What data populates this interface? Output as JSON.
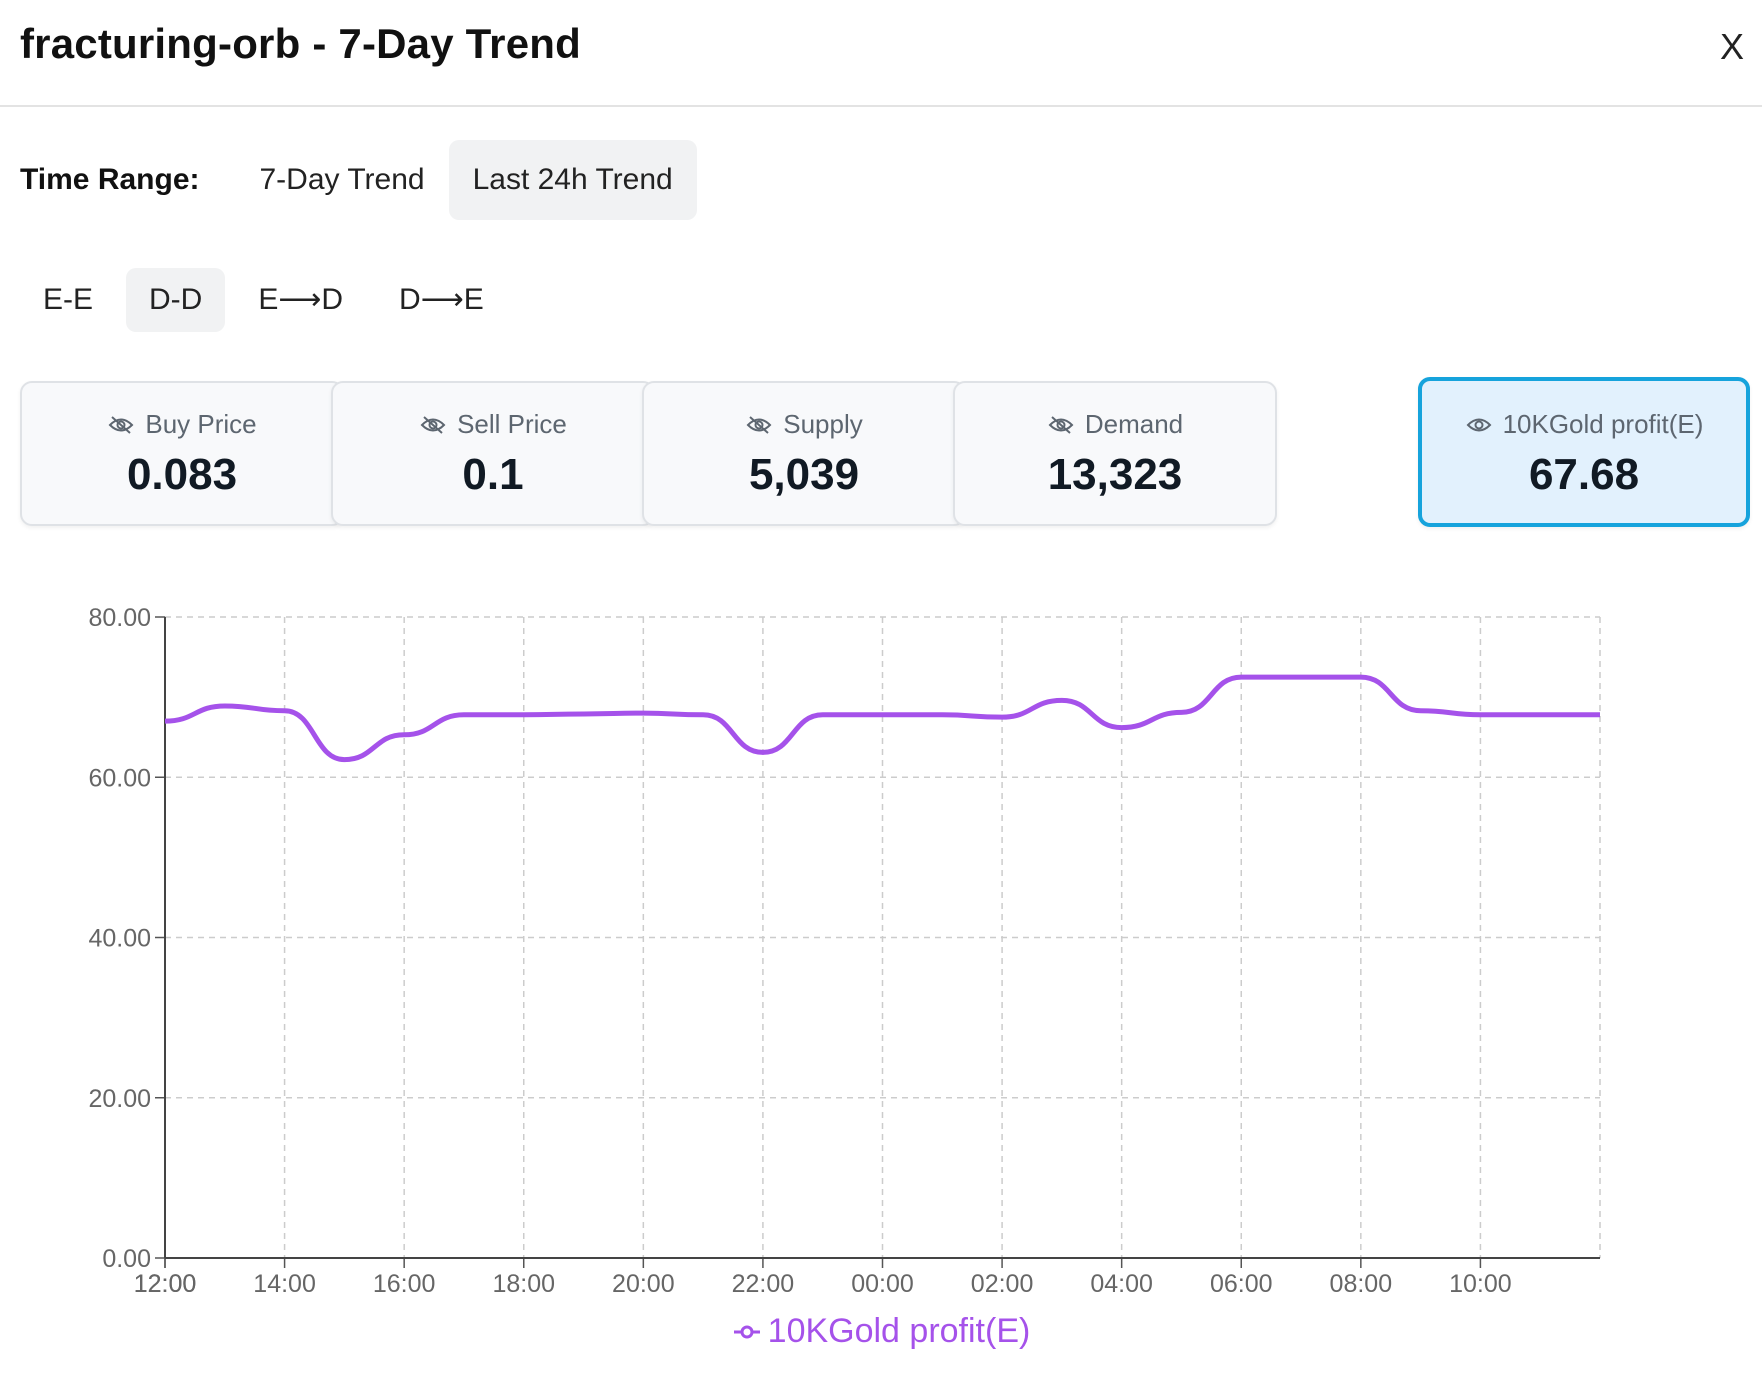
{
  "header": {
    "title": "fracturing-orb - 7-Day Trend",
    "close_label": "X"
  },
  "time_range": {
    "label": "Time Range:",
    "options": [
      "7-Day Trend",
      "Last 24h Trend"
    ],
    "selected": "Last 24h Trend"
  },
  "modes": {
    "options": [
      "E-E",
      "D-D",
      "E⟶D",
      "D⟶E"
    ],
    "selected": "D-D"
  },
  "cards": [
    {
      "label": "Buy Price",
      "value": "0.083",
      "icon": "eye-off-icon",
      "visible": false
    },
    {
      "label": "Sell Price",
      "value": "0.1",
      "icon": "eye-off-icon",
      "visible": false
    },
    {
      "label": "Supply",
      "value": "5,039",
      "icon": "eye-off-icon",
      "visible": false
    },
    {
      "label": "Demand",
      "value": "13,323",
      "icon": "eye-off-icon",
      "visible": false
    },
    {
      "label": "10KGold profit(E)",
      "value": "67.68",
      "icon": "eye-icon",
      "visible": true
    }
  ],
  "colors": {
    "series": "#a552ea",
    "accent": "#16a3dc",
    "grid": "#cccccc"
  },
  "chart_data": {
    "type": "line",
    "title": "",
    "xlabel": "",
    "ylabel": "",
    "ylim": [
      0,
      80
    ],
    "yticks": [
      "0.00",
      "20.00",
      "40.00",
      "60.00",
      "80.00"
    ],
    "x": [
      "12:00",
      "13:00",
      "14:00",
      "15:00",
      "16:00",
      "17:00",
      "18:00",
      "19:00",
      "20:00",
      "21:00",
      "22:00",
      "23:00",
      "00:00",
      "01:00",
      "02:00",
      "03:00",
      "04:00",
      "05:00",
      "06:00",
      "07:00",
      "08:00",
      "09:00",
      "10:00",
      "11:00",
      "12:00"
    ],
    "xticks": [
      "12:00",
      "14:00",
      "16:00",
      "18:00",
      "20:00",
      "22:00",
      "00:00",
      "02:00",
      "04:00",
      "06:00",
      "08:00",
      "10:00",
      "12:00"
    ],
    "series": [
      {
        "name": "10KGold profit(E)",
        "values": [
          67.0,
          68.9,
          68.3,
          62.2,
          65.3,
          67.8,
          67.8,
          67.9,
          68.0,
          67.8,
          63.1,
          67.8,
          67.8,
          67.8,
          67.5,
          69.6,
          66.2,
          68.1,
          72.5,
          72.5,
          72.5,
          68.3,
          67.8,
          67.8,
          67.8
        ]
      }
    ],
    "grid": true,
    "legend": "bottom-center"
  }
}
